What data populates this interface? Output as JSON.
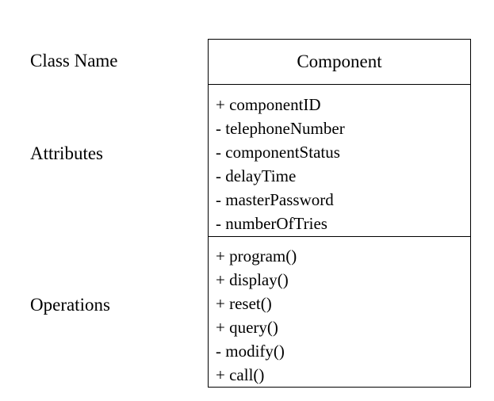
{
  "labels": {
    "class_name": "Class Name",
    "attributes": "Attributes",
    "operations": "Operations"
  },
  "class": {
    "name": "Component",
    "attributes": [
      "+ componentID",
      "- telephoneNumber",
      "- componentStatus",
      "- delayTime",
      "- masterPassword",
      "- numberOfTries"
    ],
    "operations": [
      "+ program()",
      "+ display()",
      "+ reset()",
      "+ query()",
      "- modify()",
      "+ call()"
    ]
  }
}
